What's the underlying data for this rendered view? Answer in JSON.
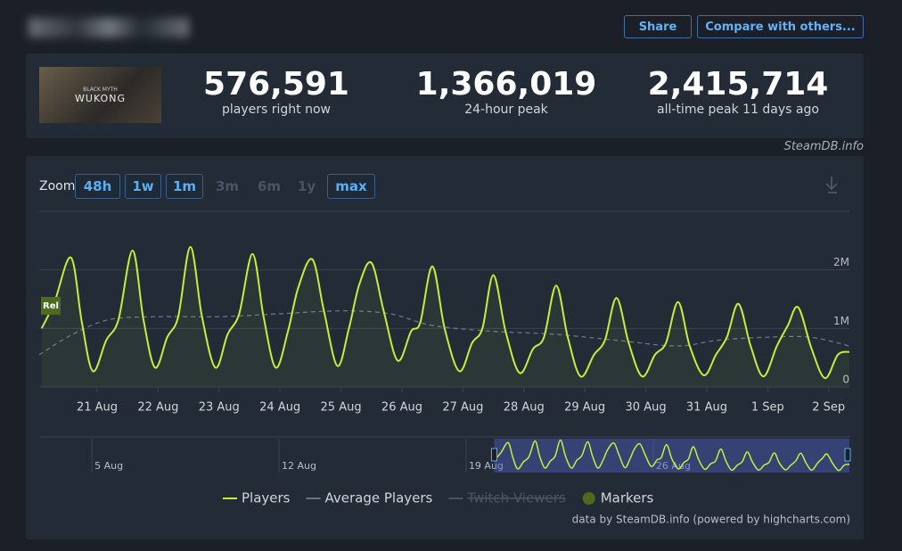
{
  "header": {
    "share": "Share",
    "compare": "Compare with others..."
  },
  "stats": {
    "game_logo": {
      "subtitle": "BLACK MYTH",
      "title": "WUKONG"
    },
    "items": [
      {
        "value": "576,591",
        "label": "players right now"
      },
      {
        "value": "1,366,019",
        "label": "24-hour peak"
      },
      {
        "value": "2,415,714",
        "label": "all-time peak 11 days ago"
      }
    ]
  },
  "watermark": "SteamDB.info",
  "zoom": {
    "label": "Zoom",
    "buttons": [
      {
        "label": "48h",
        "enabled": true
      },
      {
        "label": "1w",
        "enabled": true
      },
      {
        "label": "1m",
        "enabled": true
      },
      {
        "label": "3m",
        "enabled": false
      },
      {
        "label": "6m",
        "enabled": false
      },
      {
        "label": "1y",
        "enabled": false
      },
      {
        "label": "max",
        "enabled": true
      }
    ]
  },
  "chart_data": {
    "type": "line",
    "xlim": [
      20.05,
      33.34
    ],
    "xticks": [
      {
        "value": 21,
        "label": "21 Aug"
      },
      {
        "value": 22,
        "label": "22 Aug"
      },
      {
        "value": 23,
        "label": "23 Aug"
      },
      {
        "value": 24,
        "label": "24 Aug"
      },
      {
        "value": 25,
        "label": "25 Aug"
      },
      {
        "value": 26,
        "label": "26 Aug"
      },
      {
        "value": 27,
        "label": "27 Aug"
      },
      {
        "value": 28,
        "label": "28 Aug"
      },
      {
        "value": 29,
        "label": "29 Aug"
      },
      {
        "value": 30,
        "label": "30 Aug"
      },
      {
        "value": 31,
        "label": "31 Aug"
      },
      {
        "value": 32,
        "label": "1 Sep"
      },
      {
        "value": 33,
        "label": "2 Sep"
      }
    ],
    "ylim": [
      0,
      3000000
    ],
    "yticks": [
      {
        "value": 0,
        "label": "0"
      },
      {
        "value": 1000000,
        "label": "1M"
      },
      {
        "value": 2000000,
        "label": "2M"
      }
    ],
    "grid": true,
    "annotations": [
      {
        "label": "Rel",
        "x": 20.05
      }
    ],
    "series": [
      {
        "name": "Players",
        "color": "#c3ef3c",
        "dashed": false,
        "x": [
          20.09,
          20.3,
          20.57,
          20.75,
          20.93,
          21.15,
          21.35,
          21.58,
          21.76,
          21.95,
          22.15,
          22.33,
          22.53,
          22.72,
          22.94,
          23.14,
          23.33,
          23.55,
          23.73,
          23.93,
          24.13,
          24.3,
          24.53,
          24.72,
          24.94,
          25.13,
          25.3,
          25.5,
          25.7,
          25.93,
          26.15,
          26.3,
          26.5,
          26.7,
          26.94,
          27.15,
          27.32,
          27.5,
          27.7,
          27.93,
          28.15,
          28.33,
          28.53,
          28.72,
          28.93,
          29.15,
          29.33,
          29.52,
          29.72,
          29.94,
          30.15,
          30.33,
          30.53,
          30.72,
          30.95,
          31.15,
          31.33,
          31.52,
          31.72,
          31.93,
          32.15,
          32.33,
          32.5,
          32.72,
          32.94,
          33.15,
          33.34
        ],
        "values": [
          1000000,
          1450000,
          2210000,
          1100000,
          270000,
          800000,
          1150000,
          2330000,
          1150000,
          330000,
          850000,
          1200000,
          2390000,
          1200000,
          330000,
          900000,
          1250000,
          2270000,
          1200000,
          330000,
          950000,
          1700000,
          2180000,
          1300000,
          360000,
          1000000,
          1750000,
          2120000,
          1300000,
          450000,
          950000,
          1100000,
          2060000,
          1000000,
          270000,
          750000,
          1000000,
          1910000,
          950000,
          240000,
          650000,
          850000,
          1730000,
          850000,
          180000,
          550000,
          800000,
          1520000,
          750000,
          180000,
          550000,
          750000,
          1450000,
          700000,
          200000,
          550000,
          850000,
          1420000,
          700000,
          180000,
          700000,
          1050000,
          1360000,
          650000,
          150000,
          550000,
          600000
        ]
      },
      {
        "name": "Average Players",
        "color": "#6b7684",
        "dashed": true,
        "x": [
          20.05,
          20.6,
          21.2,
          22,
          23,
          24,
          25,
          25.8,
          26.5,
          27.5,
          28.5,
          29.5,
          30.5,
          31.2,
          32,
          32.7,
          33.34
        ],
        "values": [
          550000,
          900000,
          1150000,
          1200000,
          1200000,
          1250000,
          1300000,
          1250000,
          1050000,
          950000,
          900000,
          800000,
          700000,
          800000,
          850000,
          850000,
          700000
        ]
      }
    ],
    "legend_extra": [
      {
        "name": "Twitch Viewers",
        "hidden": true
      },
      {
        "name": "Markers",
        "hidden": false
      }
    ],
    "navigator": {
      "xlim": [
        3.03,
        33.34
      ],
      "ticks": [
        {
          "value": 5,
          "label": "5 Aug"
        },
        {
          "value": 12,
          "label": "12 Aug"
        },
        {
          "value": 19,
          "label": "19 Aug"
        },
        {
          "value": 26,
          "label": "26 Aug"
        }
      ]
    }
  },
  "credit": "data by SteamDB.info (powered by highcharts.com)"
}
